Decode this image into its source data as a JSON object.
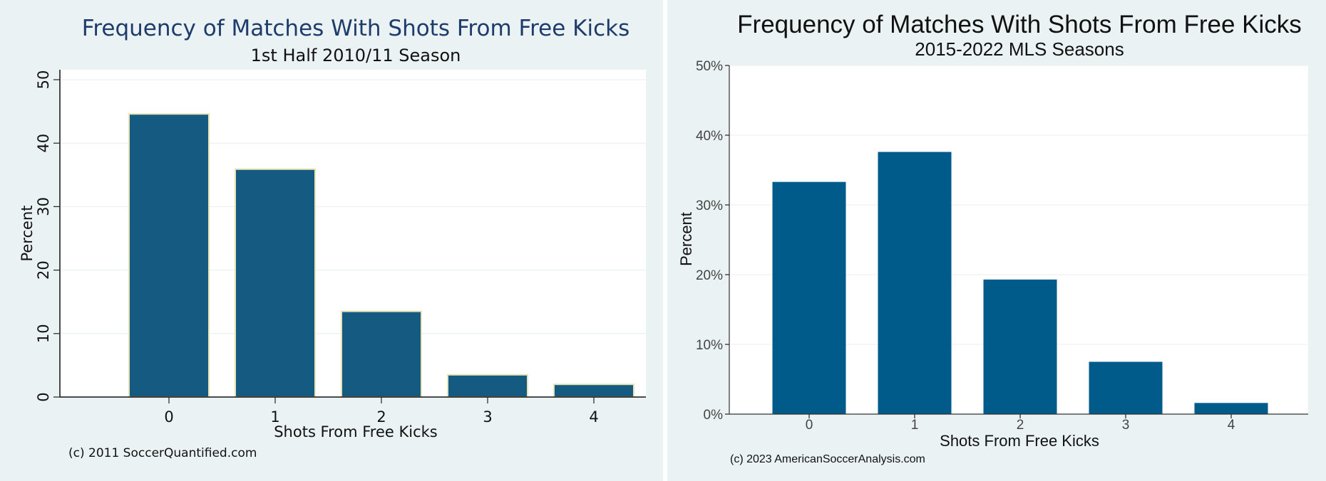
{
  "colors": {
    "background": "#eaf2f3",
    "left_bar_fill": "#155a80",
    "left_bar_edge": "#e6e3b4",
    "right_bar_fill": "#005b8a",
    "left_title": "#1e3c6b"
  },
  "chart_data": [
    {
      "type": "bar",
      "title": "Frequency of Matches With Shots From Free Kicks",
      "subtitle": "1st Half 2010/11 Season",
      "xlabel": "Shots From Free Kicks",
      "ylabel": "Percent",
      "categories": [
        "0",
        "1",
        "2",
        "3",
        "4"
      ],
      "values": [
        44.6,
        35.9,
        13.5,
        3.5,
        2.0
      ],
      "ylim": [
        0,
        50
      ],
      "yticks": [
        "0",
        "10",
        "20",
        "30",
        "40",
        "50"
      ],
      "grid": true,
      "credit": "(c) 2011 SoccerQuantified.com"
    },
    {
      "type": "bar",
      "title": "Frequency of Matches With Shots From Free Kicks",
      "subtitle": "2015-2022 MLS Seasons",
      "xlabel": "Shots From Free Kicks",
      "ylabel": "Percent",
      "categories": [
        "0",
        "1",
        "2",
        "3",
        "4"
      ],
      "values": [
        33.3,
        37.6,
        19.3,
        7.5,
        1.6
      ],
      "ylim": [
        0,
        50
      ],
      "yticks": [
        "0%",
        "10%",
        "20%",
        "30%",
        "40%",
        "50%"
      ],
      "grid": true,
      "credit": "(c) 2023 AmericanSoccerAnalysis.com"
    }
  ]
}
